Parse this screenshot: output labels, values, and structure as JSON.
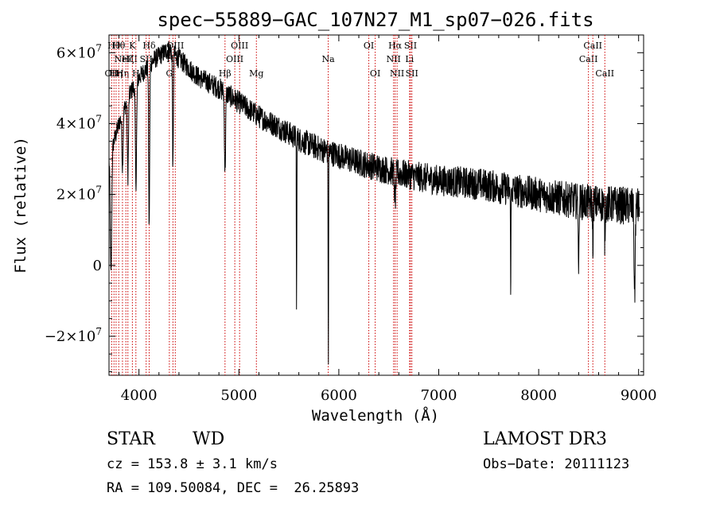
{
  "chart_data": {
    "type": "line",
    "title": "spec−55889−GAC_107N27_M1_sp07−026.fits",
    "xlabel": "Wavelength (Å)",
    "ylabel": "Flux (relative)",
    "xlim": [
      3700,
      9050
    ],
    "ylim": [
      -31000000,
      65000000
    ],
    "xticks": [
      {
        "value": 4000,
        "label": "4000"
      },
      {
        "value": 5000,
        "label": "5000"
      },
      {
        "value": 6000,
        "label": "6000"
      },
      {
        "value": 7000,
        "label": "7000"
      },
      {
        "value": 8000,
        "label": "8000"
      },
      {
        "value": 9000,
        "label": "9000"
      }
    ],
    "yticks": [
      {
        "value": -20000000,
        "mant": "−2×10",
        "exp": "7"
      },
      {
        "value": 0,
        "mant": "0",
        "exp": ""
      },
      {
        "value": 20000000,
        "mant": "2×10",
        "exp": "7"
      },
      {
        "value": 40000000,
        "mant": "4×10",
        "exp": "7"
      },
      {
        "value": 60000000,
        "mant": "6×10",
        "exp": "7"
      }
    ],
    "series": [
      {
        "name": "flux",
        "continuum": [
          [
            3700,
            30000000
          ],
          [
            3800,
            40000000
          ],
          [
            3900,
            48000000
          ],
          [
            4000,
            53000000
          ],
          [
            4150,
            58000000
          ],
          [
            4300,
            61000000
          ],
          [
            4450,
            57000000
          ],
          [
            4600,
            53000000
          ],
          [
            4800,
            50000000
          ],
          [
            5000,
            46000000
          ],
          [
            5200,
            42000000
          ],
          [
            5400,
            39000000
          ],
          [
            5600,
            35500000
          ],
          [
            5800,
            33000000
          ],
          [
            6000,
            31000000
          ],
          [
            6200,
            29000000
          ],
          [
            6400,
            27500000
          ],
          [
            6600,
            26000000
          ],
          [
            6800,
            25000000
          ],
          [
            7000,
            24000000
          ],
          [
            7200,
            23500000
          ],
          [
            7400,
            23000000
          ],
          [
            7600,
            22000000
          ],
          [
            7800,
            21000000
          ],
          [
            8000,
            20000000
          ],
          [
            8200,
            19000000
          ],
          [
            8400,
            18000000
          ],
          [
            8600,
            17500000
          ],
          [
            8800,
            17000000
          ],
          [
            9000,
            16500000
          ]
        ],
        "features": [
          {
            "center": 3720,
            "depth": 35000000,
            "width": 10
          },
          {
            "center": 3835,
            "depth": 15000000,
            "width": 8
          },
          {
            "center": 3889,
            "depth": 22000000,
            "width": 8
          },
          {
            "center": 3970,
            "depth": 28000000,
            "width": 9
          },
          {
            "center": 4102,
            "depth": 46000000,
            "width": 7
          },
          {
            "center": 4340,
            "depth": 33000000,
            "width": 6
          },
          {
            "center": 4861,
            "depth": 22000000,
            "width": 8
          },
          {
            "center": 5577,
            "depth": 51000000,
            "width": 3
          },
          {
            "center": 5895,
            "depth": 63000000,
            "width": 3
          },
          {
            "center": 6563,
            "depth": 8000000,
            "width": 9
          },
          {
            "center": 7720,
            "depth": 26000000,
            "width": 4
          },
          {
            "center": 8400,
            "depth": 24000000,
            "width": 4
          },
          {
            "center": 8542,
            "depth": 12000000,
            "width": 5
          },
          {
            "center": 8662,
            "depth": 10000000,
            "width": 5
          },
          {
            "center": 8960,
            "depth": 25000000,
            "width": 8
          }
        ],
        "noise_start": 2500000,
        "noise_end": 5500000
      }
    ],
    "lines": [
      {
        "x": 3727,
        "label": "OII",
        "row": 2
      },
      {
        "x": 3750,
        "label": "Hθ",
        "row": 0
      },
      {
        "x": 3771,
        "label": "Hη",
        "row": 2
      },
      {
        "x": 3798,
        "label": "Hθ",
        "row": 0
      },
      {
        "x": 3835,
        "label": "Hη",
        "row": 2
      },
      {
        "x": 3869,
        "label": "NeIII",
        "row": 1
      },
      {
        "x": 3889,
        "label": "Hζ",
        "row": 1
      },
      {
        "x": 3934,
        "label": "K",
        "row": 0
      },
      {
        "x": 3969,
        "label": "H",
        "row": 2
      },
      {
        "x": 4072,
        "label": "SII",
        "row": 1
      },
      {
        "x": 4102,
        "label": "Hδ",
        "row": 0
      },
      {
        "x": 4304,
        "label": "G",
        "row": 2
      },
      {
        "x": 4340,
        "label": "Hγ",
        "row": 1
      },
      {
        "x": 4363,
        "label": "OIII",
        "row": 0
      },
      {
        "x": 4861,
        "label": "Hβ",
        "row": 2
      },
      {
        "x": 4959,
        "label": "OIII",
        "row": 1
      },
      {
        "x": 5007,
        "label": "OIII",
        "row": 0
      },
      {
        "x": 5175,
        "label": "Mg",
        "row": 2
      },
      {
        "x": 5894,
        "label": "Na",
        "row": 1
      },
      {
        "x": 6300,
        "label": "OI",
        "row": 0
      },
      {
        "x": 6364,
        "label": "OI",
        "row": 2
      },
      {
        "x": 6548,
        "label": "NII",
        "row": 1
      },
      {
        "x": 6563,
        "label": "Hα",
        "row": 0
      },
      {
        "x": 6583,
        "label": "NII",
        "row": 2
      },
      {
        "x": 6717,
        "label": "SII",
        "row": 0
      },
      {
        "x": 6731,
        "label": "SII",
        "row": 2
      },
      {
        "x": 6708,
        "label": "Li",
        "row": 1
      },
      {
        "x": 8498,
        "label": "CaII",
        "row": 1
      },
      {
        "x": 8542,
        "label": "CaII",
        "row": 0
      },
      {
        "x": 8662,
        "label": "CaII",
        "row": 2
      }
    ]
  },
  "info": {
    "class_label": "STAR",
    "subclass_label": "WD",
    "survey": "LAMOST DR3",
    "cz": "cz = 153.8 ± 3.1 km/s",
    "obs_date": "Obs−Date: 20111123",
    "coords": "RA = 109.50084, DEC =  26.25893"
  }
}
